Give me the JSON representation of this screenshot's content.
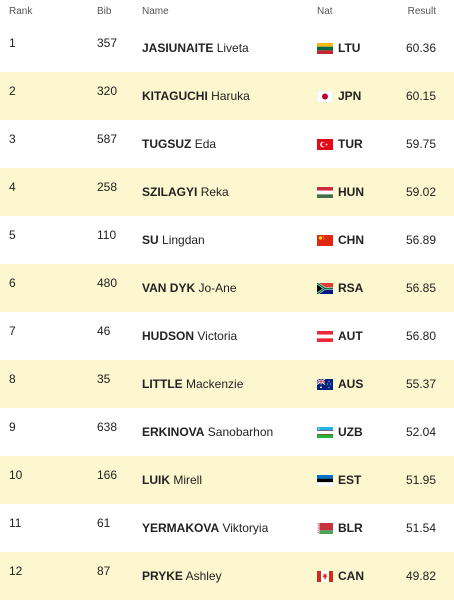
{
  "headers": {
    "rank": "Rank",
    "bib": "Bib",
    "name": "Name",
    "nat": "Nat",
    "result": "Result"
  },
  "rows": [
    {
      "rank": "1",
      "bib": "357",
      "last": "JASIUNAITE",
      "first": "Liveta",
      "nat": "LTU",
      "flag": "lithuania-flag-icon",
      "result": "60.36"
    },
    {
      "rank": "2",
      "bib": "320",
      "last": "KITAGUCHI",
      "first": "Haruka",
      "nat": "JPN",
      "flag": "japan-flag-icon",
      "result": "60.15"
    },
    {
      "rank": "3",
      "bib": "587",
      "last": "TUGSUZ",
      "first": "Eda",
      "nat": "TUR",
      "flag": "turkey-flag-icon",
      "result": "59.75"
    },
    {
      "rank": "4",
      "bib": "258",
      "last": "SZILAGYI",
      "first": "Reka",
      "nat": "HUN",
      "flag": "hungary-flag-icon",
      "result": "59.02"
    },
    {
      "rank": "5",
      "bib": "110",
      "last": "SU",
      "first": "Lingdan",
      "nat": "CHN",
      "flag": "china-flag-icon",
      "result": "56.89"
    },
    {
      "rank": "6",
      "bib": "480",
      "last": "VAN DYK",
      "first": "Jo-Ane",
      "nat": "RSA",
      "flag": "south-africa-flag-icon",
      "result": "56.85"
    },
    {
      "rank": "7",
      "bib": "46",
      "last": "HUDSON",
      "first": "Victoria",
      "nat": "AUT",
      "flag": "austria-flag-icon",
      "result": "56.80"
    },
    {
      "rank": "8",
      "bib": "35",
      "last": "LITTLE",
      "first": "Mackenzie",
      "nat": "AUS",
      "flag": "australia-flag-icon",
      "result": "55.37"
    },
    {
      "rank": "9",
      "bib": "638",
      "last": "ERKINOVA",
      "first": "Sanobarhon",
      "nat": "UZB",
      "flag": "uzbekistan-flag-icon",
      "result": "52.04"
    },
    {
      "rank": "10",
      "bib": "166",
      "last": "LUIK",
      "first": "Mirell",
      "nat": "EST",
      "flag": "estonia-flag-icon",
      "result": "51.95"
    },
    {
      "rank": "11",
      "bib": "61",
      "last": "YERMAKOVA",
      "first": "Viktoryia",
      "nat": "BLR",
      "flag": "belarus-flag-icon",
      "result": "51.54"
    },
    {
      "rank": "12",
      "bib": "87",
      "last": "PRYKE",
      "first": "Ashley",
      "nat": "CAN",
      "flag": "canada-flag-icon",
      "result": "49.82"
    }
  ],
  "colors": {
    "alt_row": "#fcf7cf",
    "text": "#222222",
    "header_text": "#555555"
  }
}
